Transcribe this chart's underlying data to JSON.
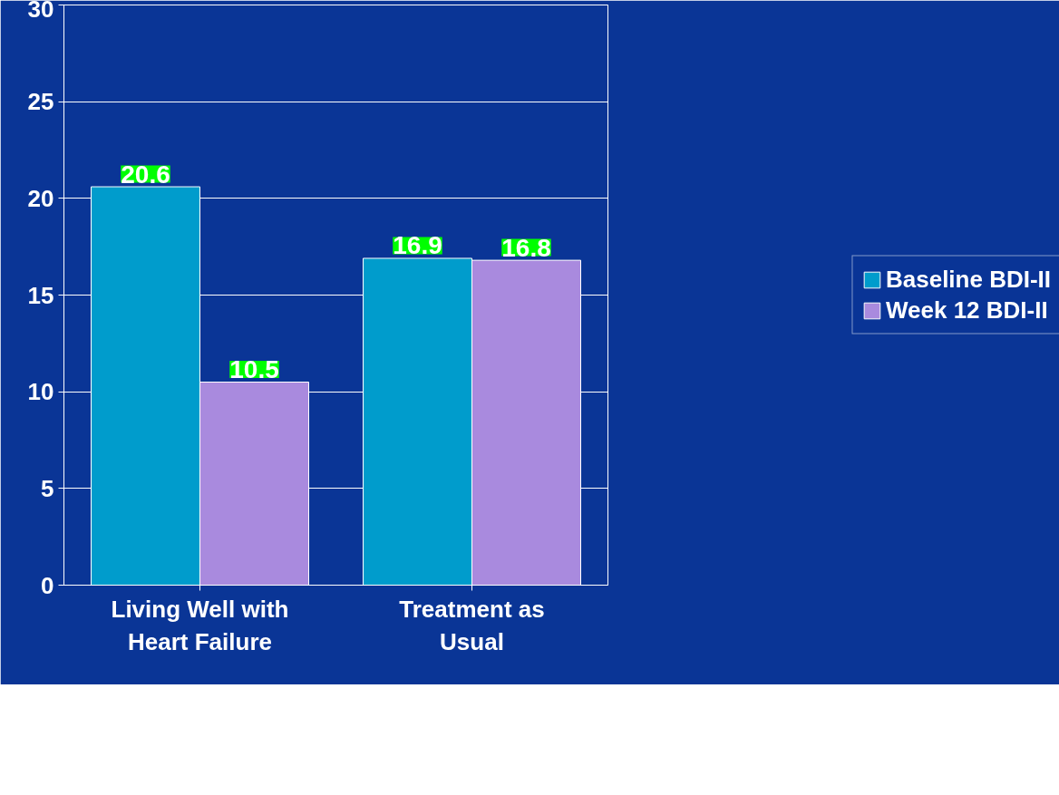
{
  "chart_data": {
    "type": "bar",
    "categories": [
      "Living Well with Heart Failure",
      "Treatment as Usual"
    ],
    "series": [
      {
        "name": "Baseline BDI-II",
        "color": "#009ccc",
        "values": [
          20.6,
          16.9
        ]
      },
      {
        "name": "Week 12 BDI-II",
        "color": "#a98ade",
        "values": [
          10.5,
          16.8
        ]
      }
    ],
    "ylim": [
      0,
      30
    ],
    "yticks": [
      0,
      5,
      10,
      15,
      20,
      25,
      30
    ],
    "grid": "y",
    "legend": "right",
    "data_labels": true
  }
}
